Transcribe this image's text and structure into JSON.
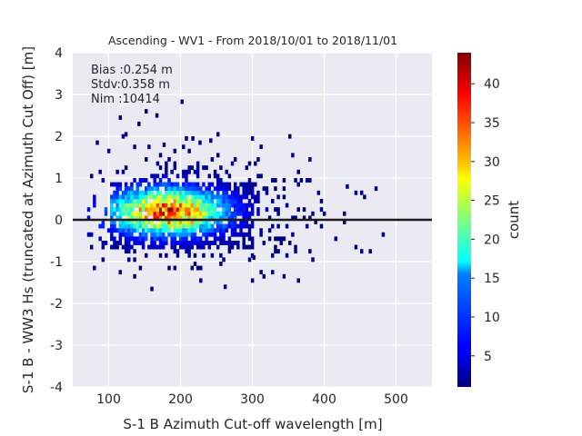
{
  "chart_data": {
    "type": "heatmap",
    "title": "Ascending - WV1 - From 2018/10/01 to 2018/11/01",
    "xlabel": "S-1 B Azimuth Cut-off wavelength [m]",
    "ylabel": "S-1 B - WW3 Hs (truncated at Azimuth Cut Off) [m]",
    "xlim": [
      50,
      550
    ],
    "ylim": [
      -4,
      4
    ],
    "xticks": [
      100,
      200,
      300,
      400,
      500
    ],
    "yticks": [
      -4,
      -3,
      -2,
      -1,
      0,
      1,
      2,
      3,
      4
    ],
    "grid": true,
    "reference_line_y": 0,
    "stats": {
      "bias": "Bias :0.254 m",
      "stdv": "Stdv:0.358 m",
      "nim": "Nim :10414"
    },
    "colorbar": {
      "label": "count",
      "colormap": "jet",
      "range": [
        1,
        44
      ],
      "ticks": [
        5,
        10,
        15,
        20,
        25,
        30,
        35,
        40
      ]
    },
    "density": {
      "peak_x": 180,
      "peak_y": 0.15,
      "peak_count": 44,
      "core_x_range": [
        100,
        300
      ],
      "core_y_range": [
        -0.7,
        0.9
      ],
      "data_x_range": [
        70,
        480
      ],
      "data_y_range": [
        -1.7,
        2.8
      ]
    }
  }
}
